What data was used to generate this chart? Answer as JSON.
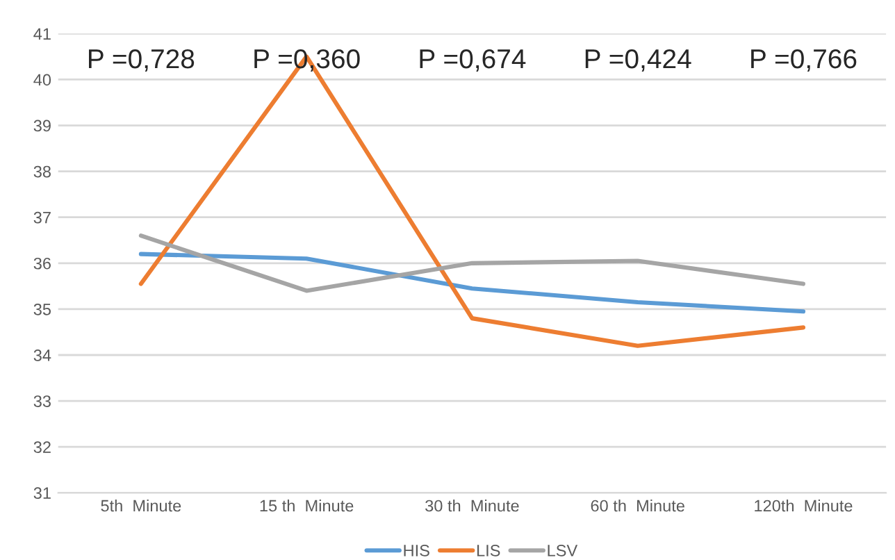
{
  "chart_data": {
    "type": "line",
    "categories": [
      "5th  Minute",
      "15 th  Minute",
      "30 th  Minute",
      "60 th  Minute",
      "120th  Minute"
    ],
    "series": [
      {
        "name": "HIS",
        "color": "#5b9bd5",
        "values": [
          36.2,
          36.1,
          35.45,
          35.15,
          34.95
        ]
      },
      {
        "name": "LIS",
        "color": "#ed7d31",
        "values": [
          35.55,
          40.5,
          34.8,
          34.2,
          34.6
        ]
      },
      {
        "name": "LSV",
        "color": "#a5a5a5",
        "values": [
          36.6,
          35.4,
          36.0,
          36.05,
          35.55
        ]
      }
    ],
    "annotations": [
      "P =0,728",
      "P =0,360",
      "P =0,674",
      "P =0,424",
      "P =0,766"
    ],
    "ylim": [
      31,
      41
    ],
    "yticks": [
      31,
      32,
      33,
      34,
      35,
      36,
      37,
      38,
      39,
      40,
      41
    ],
    "grid": "y",
    "legend": "bottom",
    "marker": "none",
    "line_style": "solid"
  }
}
